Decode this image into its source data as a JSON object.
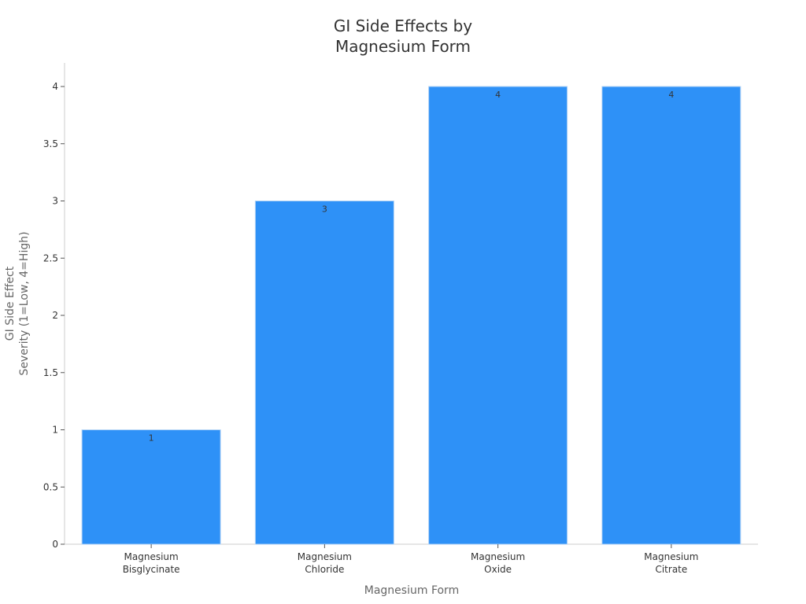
{
  "chart_data": {
    "type": "bar",
    "title": [
      "GI Side Effects by",
      "Magnesium Form"
    ],
    "xlabel": "Magnesium Form",
    "ylabel": [
      "GI Side Effect",
      "Severity (1=Low, 4=High)"
    ],
    "categories": [
      [
        "Magnesium",
        "Bisglycinate"
      ],
      [
        "Magnesium",
        "Chloride"
      ],
      [
        "Magnesium",
        "Oxide"
      ],
      [
        "Magnesium",
        "Citrate"
      ]
    ],
    "values": [
      1,
      3,
      4,
      4
    ],
    "data_labels": [
      "1",
      "3",
      "4",
      "4"
    ],
    "ylim": [
      0,
      4.2
    ],
    "yticks": [
      0,
      0.5,
      1,
      1.5,
      2,
      2.5,
      3,
      3.5,
      4
    ],
    "ytick_labels": [
      "0",
      "0.5",
      "1",
      "1.5",
      "2",
      "2.5",
      "3",
      "3.5",
      "4"
    ],
    "grid": false,
    "legend": "none",
    "colors": {
      "bar": "#2e91f7",
      "bar_edge": "#b3d3f5",
      "axis": "#cccccc",
      "text": "#333333",
      "axis_title": "#666666"
    }
  }
}
